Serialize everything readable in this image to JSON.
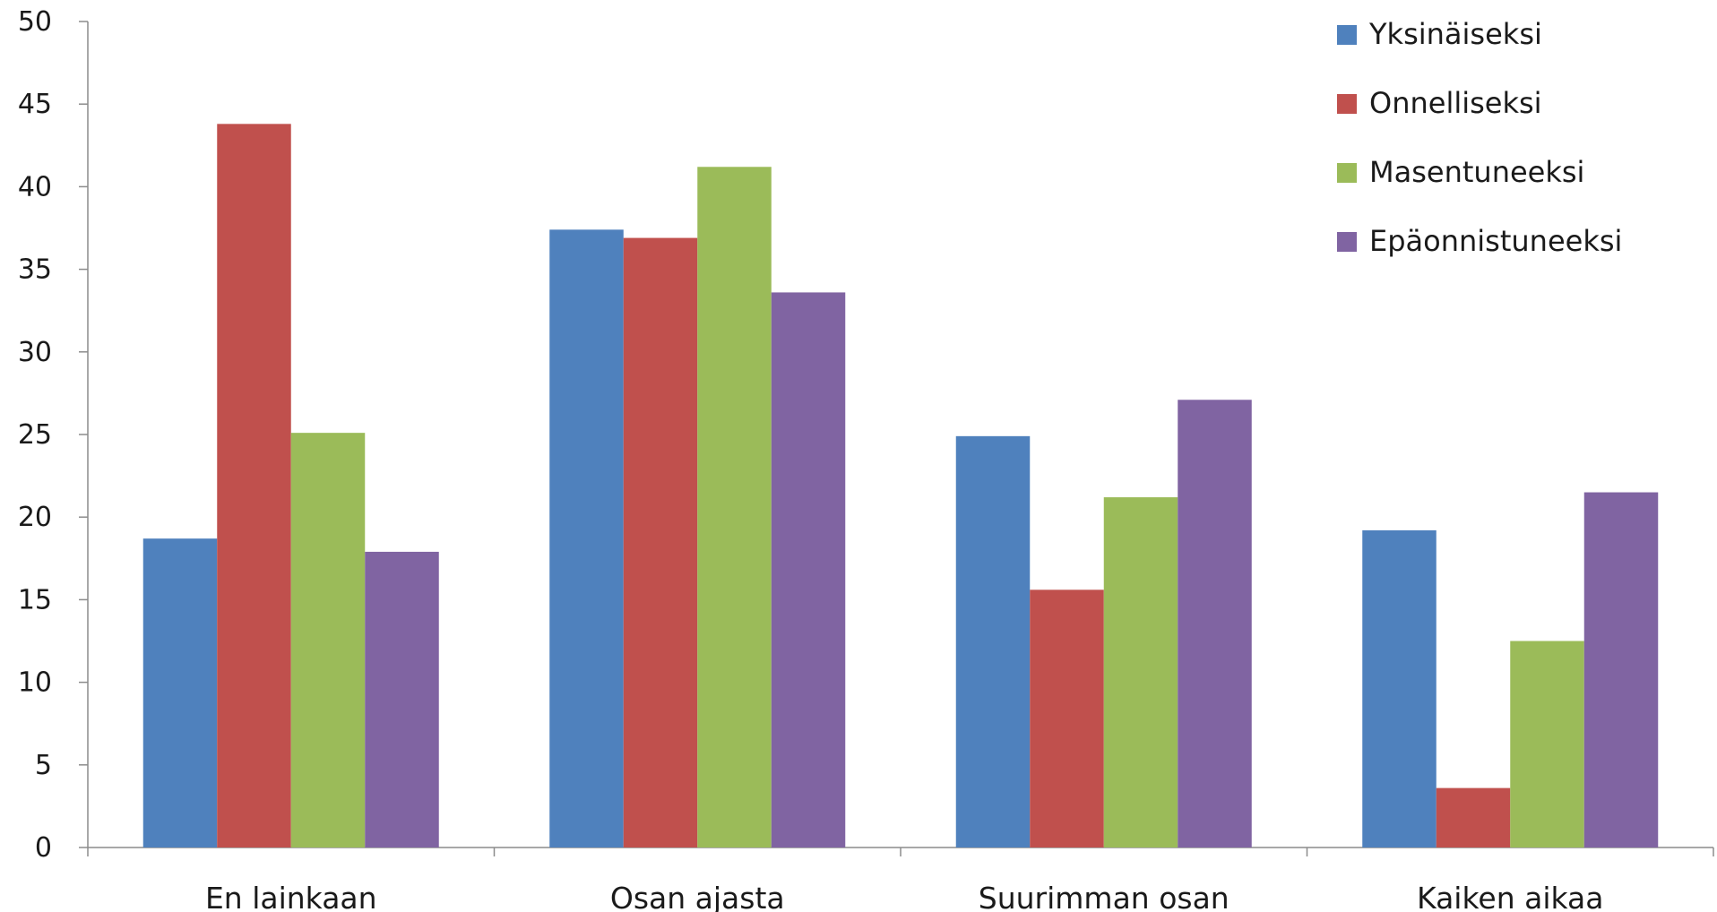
{
  "chart_data": {
    "type": "bar",
    "title": "",
    "xlabel": "",
    "ylabel": "",
    "categories": [
      "En lainkaan",
      "Osan ajasta",
      "Suurimman osan",
      "Kaiken aikaa"
    ],
    "series": [
      {
        "name": "Yksinäiseksi",
        "color": "#4F81BD",
        "values": [
          18.7,
          37.4,
          24.9,
          19.2
        ]
      },
      {
        "name": "Onnelliseksi",
        "color": "#C0504D",
        "values": [
          43.8,
          36.9,
          15.6,
          3.6
        ]
      },
      {
        "name": "Masentuneeksi",
        "color": "#9BBB59",
        "values": [
          25.1,
          41.2,
          21.2,
          12.5
        ]
      },
      {
        "name": "Epäonnistuneeksi",
        "color": "#8064A2",
        "values": [
          17.9,
          33.6,
          27.1,
          21.5
        ]
      }
    ],
    "yticks": [
      0,
      5,
      10,
      15,
      20,
      25,
      30,
      35,
      40,
      45,
      50
    ],
    "ylim": [
      0,
      50
    ],
    "grid": false,
    "legend": "top-right"
  }
}
